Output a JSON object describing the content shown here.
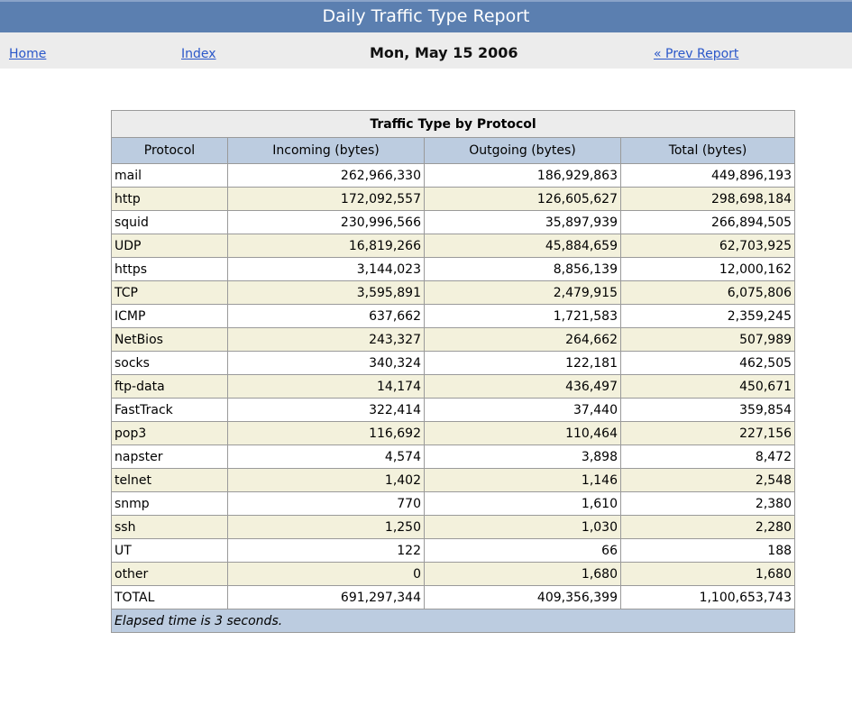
{
  "header": {
    "title": "Daily Traffic Type Report"
  },
  "nav": {
    "home": "Home",
    "index": "Index",
    "date": "Mon, May 15 2006",
    "prev": "« Prev Report"
  },
  "table": {
    "caption": "Traffic Type by Protocol",
    "columns": [
      "Protocol",
      "Incoming (bytes)",
      "Outgoing (bytes)",
      "Total (bytes)"
    ],
    "rows": [
      [
        "mail",
        "262,966,330",
        "186,929,863",
        "449,896,193"
      ],
      [
        "http",
        "172,092,557",
        "126,605,627",
        "298,698,184"
      ],
      [
        "squid",
        "230,996,566",
        "35,897,939",
        "266,894,505"
      ],
      [
        "UDP",
        "16,819,266",
        "45,884,659",
        "62,703,925"
      ],
      [
        "https",
        "3,144,023",
        "8,856,139",
        "12,000,162"
      ],
      [
        "TCP",
        "3,595,891",
        "2,479,915",
        "6,075,806"
      ],
      [
        "ICMP",
        "637,662",
        "1,721,583",
        "2,359,245"
      ],
      [
        "NetBios",
        "243,327",
        "264,662",
        "507,989"
      ],
      [
        "socks",
        "340,324",
        "122,181",
        "462,505"
      ],
      [
        "ftp-data",
        "14,174",
        "436,497",
        "450,671"
      ],
      [
        "FastTrack",
        "322,414",
        "37,440",
        "359,854"
      ],
      [
        "pop3",
        "116,692",
        "110,464",
        "227,156"
      ],
      [
        "napster",
        "4,574",
        "3,898",
        "8,472"
      ],
      [
        "telnet",
        "1,402",
        "1,146",
        "2,548"
      ],
      [
        "snmp",
        "770",
        "1,610",
        "2,380"
      ],
      [
        "ssh",
        "1,250",
        "1,030",
        "2,280"
      ],
      [
        "UT",
        "122",
        "66",
        "188"
      ],
      [
        "other",
        "0",
        "1,680",
        "1,680"
      ],
      [
        "TOTAL",
        "691,297,344",
        "409,356,399",
        "1,100,653,743"
      ]
    ],
    "footer": "Elapsed time is 3 seconds."
  },
  "colors": {
    "title_bar": "#5b7fb0",
    "header_row": "#bccce0",
    "alt_row": "#f3f1dc",
    "link": "#2a57c9"
  }
}
